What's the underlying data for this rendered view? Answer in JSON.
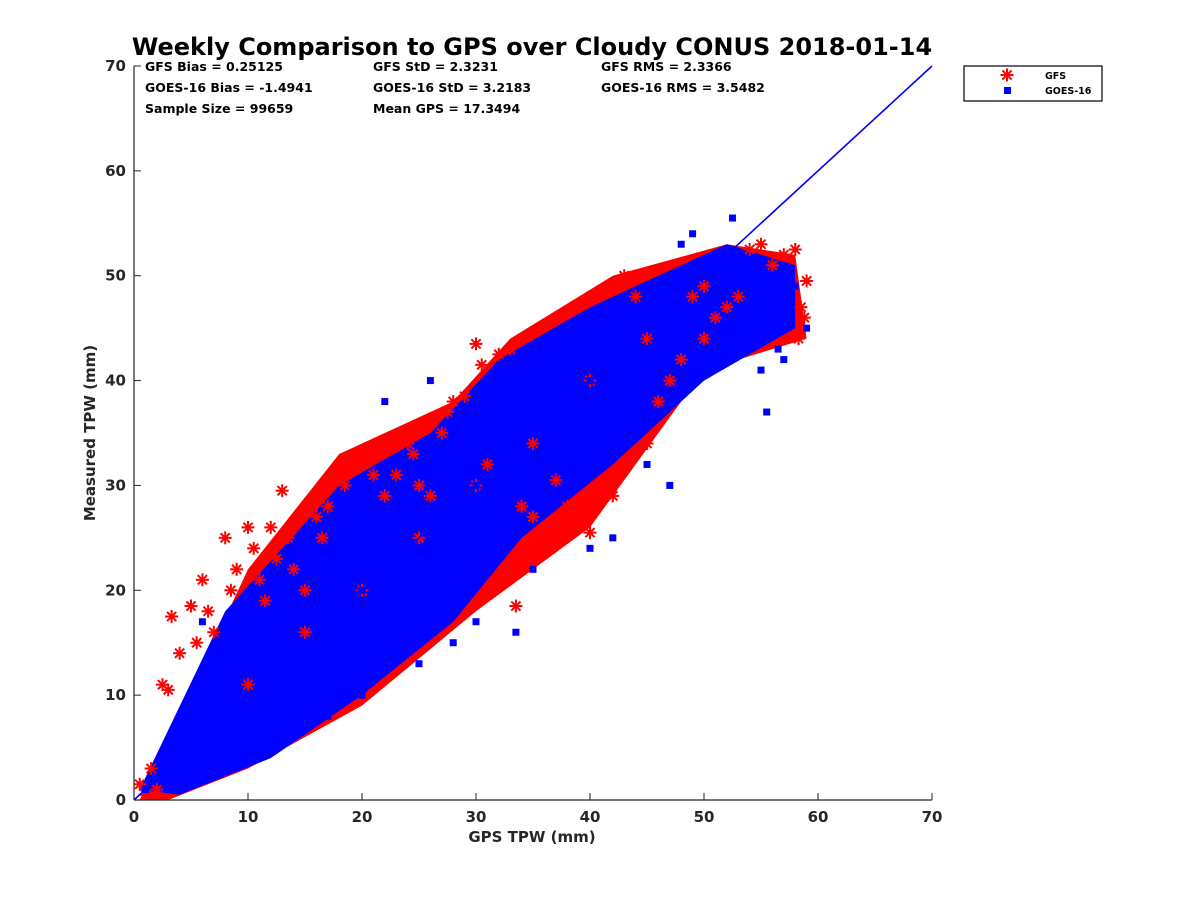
{
  "chart_data": {
    "type": "scatter",
    "title": "Weekly Comparison to GPS over Cloudy CONUS 2018-01-14",
    "xlabel": "GPS TPW (mm)",
    "ylabel": "Measured TPW (mm)",
    "xlim": [
      0,
      70
    ],
    "ylim": [
      0,
      70
    ],
    "xticks": [
      "0",
      "10",
      "20",
      "30",
      "40",
      "50",
      "60",
      "70"
    ],
    "yticks": [
      "0",
      "10",
      "20",
      "30",
      "40",
      "50",
      "60",
      "70"
    ],
    "grid": false,
    "legend_position": "outside-top-right",
    "stats": [
      [
        "GFS Bias = 0.25125",
        "GFS StD = 2.3231",
        "GFS RMS = 2.3366"
      ],
      [
        "GOES-16 Bias = -1.4941",
        "GOES-16 StD = 3.2183",
        "GOES-16 RMS = 3.5482"
      ],
      [
        "Sample Size = 99659",
        "Mean GPS = 17.3494",
        ""
      ]
    ],
    "reference_line": {
      "x": [
        0,
        70
      ],
      "y": [
        0,
        70
      ],
      "color": "#0000ff"
    },
    "series": [
      {
        "name": "GFS",
        "marker": "asterisk",
        "color": "#ff0000",
        "points": [
          [
            0.5,
            1.5
          ],
          [
            1,
            0.5
          ],
          [
            1.5,
            3
          ],
          [
            2,
            1
          ],
          [
            2.5,
            11
          ],
          [
            3,
            10.5
          ],
          [
            3.3,
            17.5
          ],
          [
            4,
            14
          ],
          [
            5,
            18.5
          ],
          [
            5.5,
            15
          ],
          [
            6,
            21
          ],
          [
            6.5,
            18
          ],
          [
            7,
            16
          ],
          [
            8,
            25
          ],
          [
            8.5,
            20
          ],
          [
            9,
            22
          ],
          [
            10,
            26
          ],
          [
            10.5,
            24
          ],
          [
            11,
            21
          ],
          [
            11.5,
            19
          ],
          [
            12,
            26
          ],
          [
            12.5,
            23
          ],
          [
            13,
            29.5
          ],
          [
            13.5,
            25
          ],
          [
            14,
            22
          ],
          [
            15,
            20
          ],
          [
            16,
            27
          ],
          [
            16.5,
            25
          ],
          [
            17,
            28
          ],
          [
            18,
            32
          ],
          [
            18.5,
            30
          ],
          [
            19,
            31.5
          ],
          [
            19.5,
            33
          ],
          [
            20,
            32
          ],
          [
            21,
            31
          ],
          [
            22,
            29
          ],
          [
            23,
            31
          ],
          [
            24,
            34
          ],
          [
            24.5,
            33
          ],
          [
            25,
            30
          ],
          [
            26,
            29
          ],
          [
            27,
            35
          ],
          [
            27.5,
            37
          ],
          [
            28,
            38
          ],
          [
            29,
            38.5
          ],
          [
            30,
            43.5
          ],
          [
            30.5,
            41.5
          ],
          [
            31,
            32
          ],
          [
            32,
            42.5
          ],
          [
            33,
            43
          ],
          [
            33.5,
            18.5
          ],
          [
            34,
            28
          ],
          [
            35,
            27
          ],
          [
            36,
            26
          ],
          [
            37,
            30.5
          ],
          [
            38,
            28
          ],
          [
            39,
            26
          ],
          [
            40,
            25.5
          ],
          [
            41,
            30
          ],
          [
            42,
            29
          ],
          [
            43,
            50
          ],
          [
            44,
            48
          ],
          [
            45,
            34
          ],
          [
            46,
            38
          ],
          [
            47,
            40
          ],
          [
            48,
            42
          ],
          [
            49,
            48
          ],
          [
            50,
            44
          ],
          [
            51,
            46
          ],
          [
            52,
            47
          ],
          [
            53,
            48
          ],
          [
            54,
            52.5
          ],
          [
            55,
            53
          ],
          [
            56,
            51
          ],
          [
            57,
            52
          ],
          [
            58,
            52.5
          ],
          [
            58.3,
            44
          ],
          [
            58.5,
            47
          ],
          [
            59,
            49.5
          ],
          [
            58.8,
            46
          ],
          [
            20,
            20
          ],
          [
            15,
            16
          ],
          [
            10,
            11
          ],
          [
            25,
            25
          ],
          [
            30,
            30
          ],
          [
            35,
            34
          ],
          [
            40,
            40
          ],
          [
            45,
            44
          ],
          [
            50,
            49
          ]
        ]
      },
      {
        "name": "GOES-16",
        "marker": "square",
        "color": "#0000ff",
        "points": [
          [
            1,
            1
          ],
          [
            2,
            2
          ],
          [
            3,
            2.5
          ],
          [
            4,
            4
          ],
          [
            5,
            5
          ],
          [
            6,
            6
          ],
          [
            7,
            7
          ],
          [
            8,
            8
          ],
          [
            9,
            9
          ],
          [
            10,
            10
          ],
          [
            11,
            11
          ],
          [
            12,
            12
          ],
          [
            13,
            13
          ],
          [
            14,
            14
          ],
          [
            15,
            15
          ],
          [
            16,
            16
          ],
          [
            17,
            17
          ],
          [
            18,
            18
          ],
          [
            19,
            19
          ],
          [
            20,
            20
          ],
          [
            22,
            22
          ],
          [
            24,
            24
          ],
          [
            26,
            26
          ],
          [
            28,
            28
          ],
          [
            30,
            30
          ],
          [
            32,
            32
          ],
          [
            34,
            34
          ],
          [
            36,
            36
          ],
          [
            38,
            38
          ],
          [
            40,
            40
          ],
          [
            42,
            42
          ],
          [
            44,
            44
          ],
          [
            46,
            46
          ],
          [
            48,
            47
          ],
          [
            50,
            48
          ],
          [
            52,
            49
          ],
          [
            54,
            50
          ],
          [
            56,
            50
          ],
          [
            58,
            49
          ],
          [
            52.5,
            55.5
          ],
          [
            49,
            54
          ],
          [
            48,
            53
          ],
          [
            22,
            38
          ],
          [
            26,
            40
          ],
          [
            18,
            27
          ],
          [
            12,
            21
          ],
          [
            6,
            17
          ],
          [
            33.5,
            16
          ],
          [
            40,
            24
          ],
          [
            42,
            25
          ],
          [
            55,
            41
          ],
          [
            56.5,
            43
          ],
          [
            55.5,
            37
          ],
          [
            57,
            42
          ],
          [
            59,
            45
          ],
          [
            47,
            30
          ],
          [
            45,
            32
          ],
          [
            35,
            22
          ],
          [
            30,
            17
          ],
          [
            28,
            15
          ],
          [
            25,
            13
          ],
          [
            20,
            10
          ],
          [
            17,
            8
          ],
          [
            14,
            6
          ],
          [
            10,
            4
          ],
          [
            8,
            3
          ],
          [
            5,
            2
          ],
          [
            3,
            1
          ],
          [
            38,
            36
          ],
          [
            44,
            40
          ]
        ]
      }
    ]
  }
}
